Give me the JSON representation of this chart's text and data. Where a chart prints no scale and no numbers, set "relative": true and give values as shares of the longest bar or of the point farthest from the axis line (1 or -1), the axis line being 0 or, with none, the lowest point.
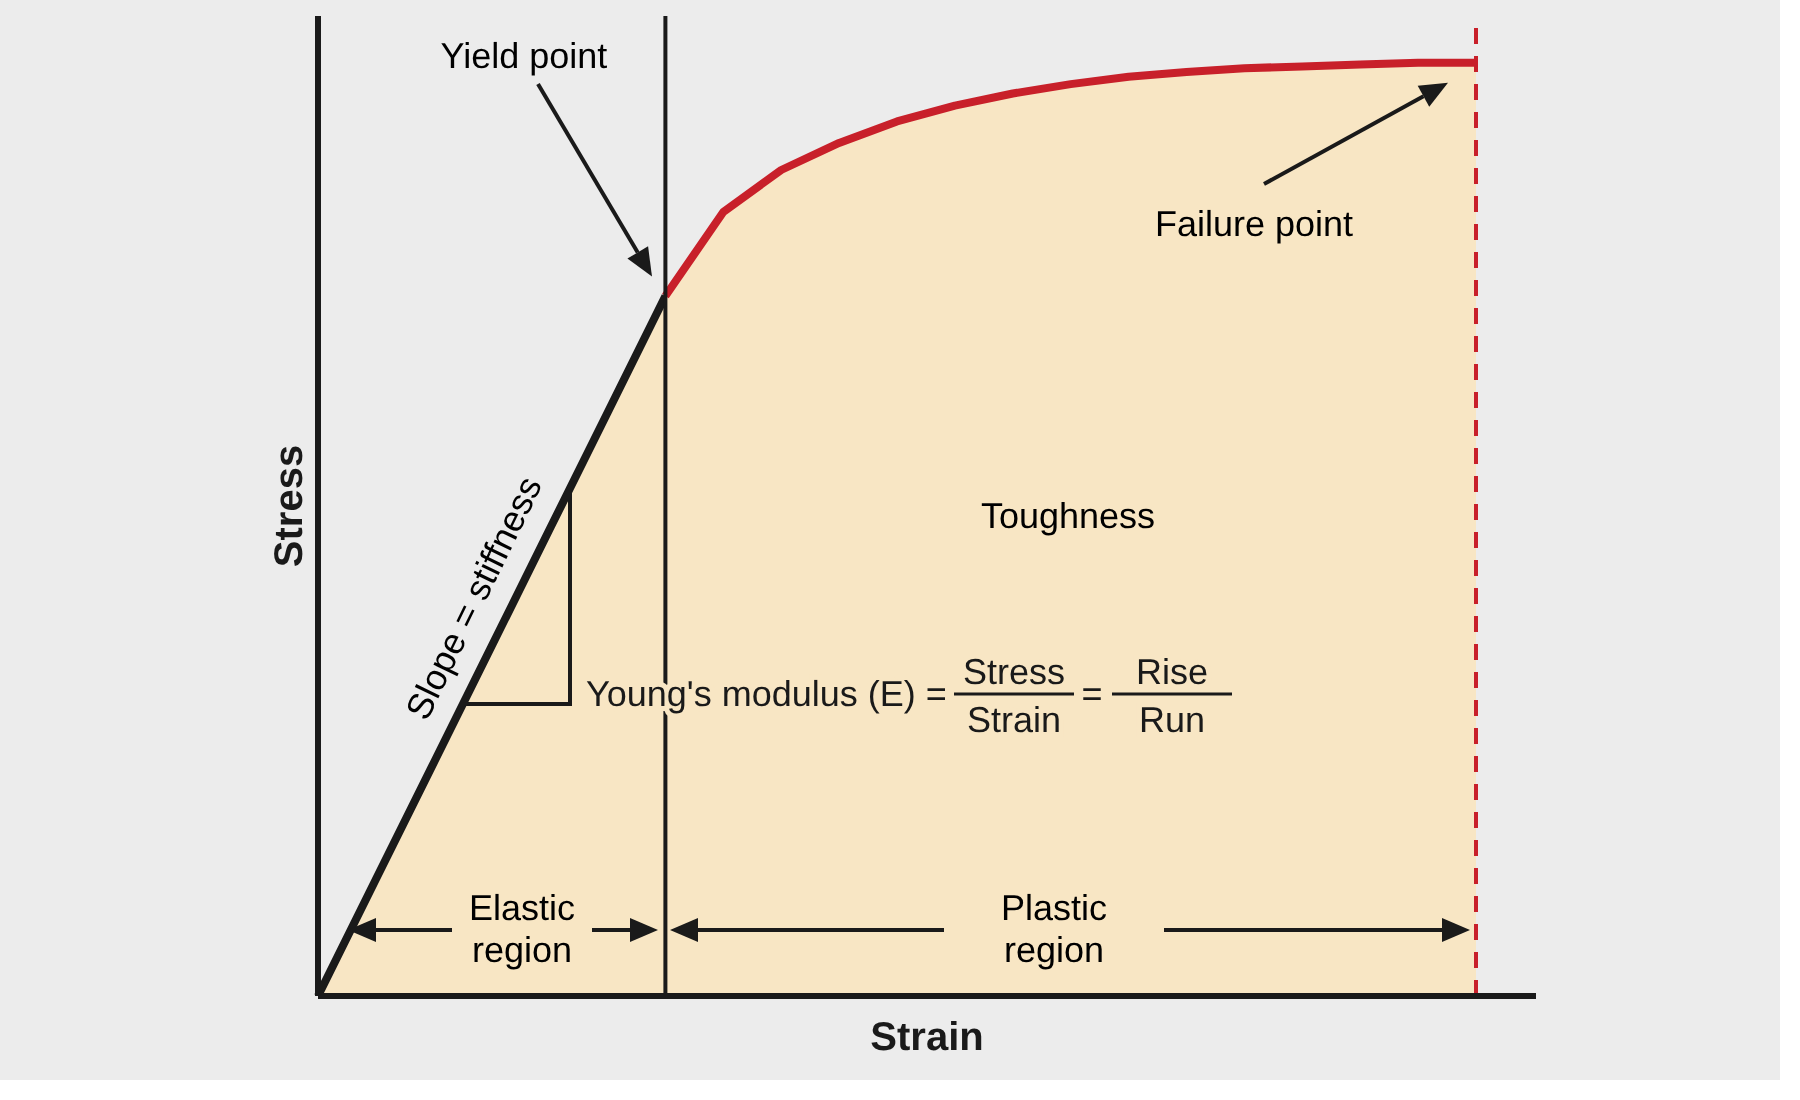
{
  "chart_data": {
    "type": "area",
    "relative": true,
    "xlabel": "Strain",
    "ylabel": "Stress",
    "categories": [
      null,
      null,
      null,
      null,
      null,
      null,
      null,
      null,
      null,
      null,
      null,
      null,
      null,
      null,
      null,
      null,
      null,
      null,
      null,
      null,
      null
    ],
    "series": [
      {
        "color": "#1a1a1a",
        "values": [
          0,
          0.125,
          0.25,
          0.375,
          0.5,
          0.625,
          0.75,
          null,
          null,
          null,
          null,
          null,
          null,
          null,
          null,
          null,
          null,
          null,
          null,
          null,
          null
        ]
      },
      {
        "color": "#c8202a",
        "values": [
          null,
          null,
          null,
          null,
          null,
          null,
          0.75,
          0.84,
          0.885,
          0.914,
          0.937,
          0.954,
          0.967,
          0.977,
          0.985,
          0.99,
          0.994,
          0.996,
          0.998,
          1.0,
          1.0
        ]
      }
    ],
    "annotations": [
      "Yield point",
      "Failure point",
      "Toughness",
      "Elastic region",
      "Plastic region",
      "Slope = stiffness",
      "Young's modulus (E) =",
      "Stress",
      "Strain",
      "=",
      "Rise",
      "Run"
    ]
  }
}
